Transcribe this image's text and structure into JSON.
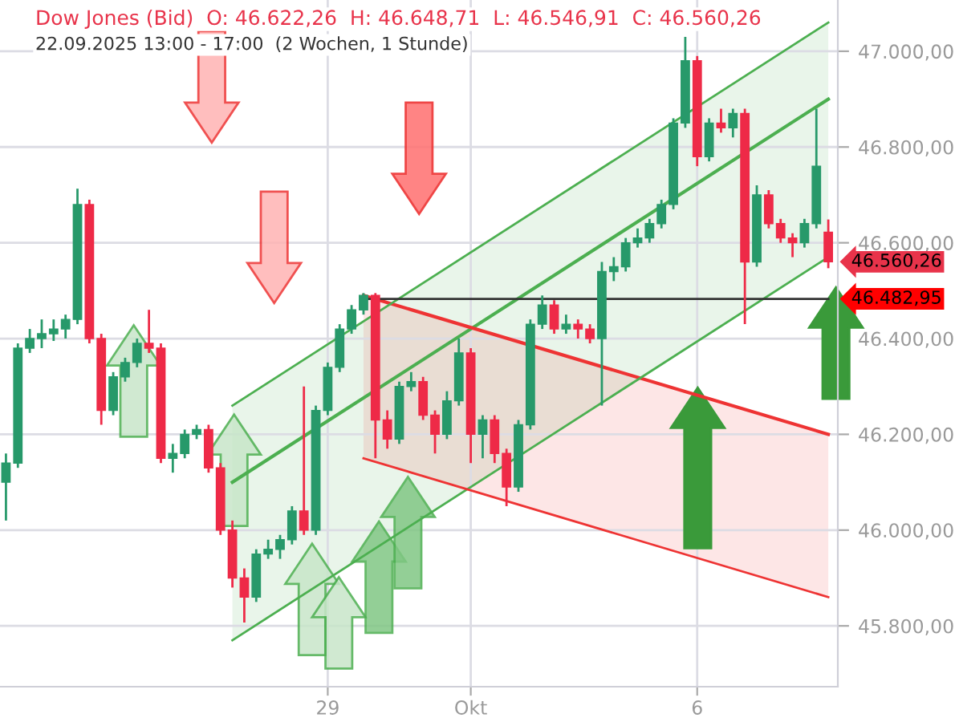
{
  "chart_data": {
    "type": "candlestick",
    "title": "Dow Jones (Bid)  O: 46.622,26  H: 46.648,71  L: 46.546,91  C: 46.560,26",
    "subtitle": "22.09.2025 13:00 - 17:00  (2 Wochen, 1 Stunde)",
    "categories": [
      null,
      null,
      null,
      null,
      null,
      null,
      null,
      null,
      null,
      null,
      null,
      null,
      null,
      null,
      null,
      null,
      null,
      null,
      null,
      null,
      null,
      null,
      null,
      null,
      null,
      null,
      null,
      "29",
      null,
      null,
      null,
      null,
      null,
      null,
      null,
      null,
      null,
      null,
      null,
      "Okt",
      null,
      null,
      null,
      null,
      null,
      null,
      null,
      null,
      null,
      null,
      null,
      null,
      null,
      null,
      null,
      null,
      null,
      null,
      "6",
      null,
      null,
      null,
      null,
      null,
      null,
      null,
      null,
      null,
      null,
      null
    ],
    "ohlc": [
      [
        46100,
        46160,
        46020,
        46140
      ],
      [
        46140,
        46390,
        46130,
        46380
      ],
      [
        46380,
        46420,
        46370,
        46400
      ],
      [
        46400,
        46440,
        46380,
        46410
      ],
      [
        46410,
        46440,
        46395,
        46420
      ],
      [
        46420,
        46450,
        46400,
        46440
      ],
      [
        46440,
        46713,
        46430,
        46680
      ],
      [
        46680,
        46690,
        46390,
        46400
      ],
      [
        46400,
        46410,
        46220,
        46250
      ],
      [
        46250,
        46330,
        46240,
        46320
      ],
      [
        46320,
        46360,
        46310,
        46350
      ],
      [
        46350,
        46400,
        46340,
        46390
      ],
      [
        46390,
        46460,
        46370,
        46380
      ],
      [
        46380,
        46390,
        46140,
        46150
      ],
      [
        46150,
        46180,
        46120,
        46160
      ],
      [
        46160,
        46210,
        46150,
        46200
      ],
      [
        46200,
        46220,
        46190,
        46210
      ],
      [
        46210,
        46220,
        46120,
        46130
      ],
      [
        46130,
        46140,
        45990,
        46000
      ],
      [
        46000,
        46020,
        45880,
        45900
      ],
      [
        45900,
        45920,
        45807,
        45860
      ],
      [
        45860,
        45960,
        45850,
        45950
      ],
      [
        45950,
        45980,
        45940,
        45960
      ],
      [
        45960,
        45990,
        45940,
        45980
      ],
      [
        45980,
        46050,
        45970,
        46040
      ],
      [
        46040,
        46300,
        45990,
        46000
      ],
      [
        46000,
        46260,
        45990,
        46250
      ],
      [
        46250,
        46350,
        46240,
        46340
      ],
      [
        46340,
        46430,
        46330,
        46420
      ],
      [
        46420,
        46470,
        46410,
        46460
      ],
      [
        46460,
        46495,
        46450,
        46490
      ],
      [
        46490,
        46495,
        46150,
        46230
      ],
      [
        46230,
        46250,
        46170,
        46190
      ],
      [
        46190,
        46310,
        46180,
        46300
      ],
      [
        46300,
        46330,
        46290,
        46310
      ],
      [
        46310,
        46320,
        46230,
        46240
      ],
      [
        46240,
        46250,
        46160,
        46200
      ],
      [
        46200,
        46290,
        46190,
        46270
      ],
      [
        46270,
        46400,
        46260,
        46370
      ],
      [
        46370,
        46380,
        46140,
        46200
      ],
      [
        46200,
        46240,
        46150,
        46230
      ],
      [
        46230,
        46240,
        46140,
        46160
      ],
      [
        46160,
        46170,
        46050,
        46090
      ],
      [
        46090,
        46230,
        46080,
        46220
      ],
      [
        46220,
        46440,
        46210,
        46430
      ],
      [
        46430,
        46490,
        46420,
        46470
      ],
      [
        46470,
        46480,
        46410,
        46420
      ],
      [
        46420,
        46450,
        46410,
        46430
      ],
      [
        46430,
        46440,
        46400,
        46420
      ],
      [
        46420,
        46430,
        46390,
        46400
      ],
      [
        46400,
        46560,
        46260,
        46540
      ],
      [
        46540,
        46570,
        46520,
        46550
      ],
      [
        46550,
        46610,
        46540,
        46600
      ],
      [
        46600,
        46630,
        46590,
        46610
      ],
      [
        46610,
        46650,
        46600,
        46640
      ],
      [
        46640,
        46690,
        46630,
        46680
      ],
      [
        46680,
        46860,
        46670,
        46850
      ],
      [
        46850,
        47030,
        46840,
        46980
      ],
      [
        46980,
        46990,
        46760,
        46780
      ],
      [
        46780,
        46860,
        46770,
        46850
      ],
      [
        46850,
        46880,
        46830,
        46840
      ],
      [
        46840,
        46880,
        46820,
        46870
      ],
      [
        46870,
        46880,
        46430,
        46560
      ],
      [
        46560,
        46720,
        46550,
        46700
      ],
      [
        46700,
        46710,
        46630,
        46640
      ],
      [
        46640,
        46650,
        46600,
        46610
      ],
      [
        46610,
        46620,
        46570,
        46600
      ],
      [
        46600,
        46650,
        46590,
        46640
      ],
      [
        46640,
        46880,
        46630,
        46760
      ],
      [
        46622.26,
        46648.71,
        46546.91,
        46560.26
      ]
    ],
    "colors": [
      "#27996a",
      "#27996a",
      "#27996a",
      "#27996a",
      "#27996a",
      "#27996a",
      "#27996a",
      "#ee2a47",
      "#ee2a47",
      "#27996a",
      "#27996a",
      "#27996a",
      "#ee2a47",
      "#ee2a47",
      "#27996a",
      "#27996a",
      "#27996a",
      "#ee2a47",
      "#ee2a47",
      "#ee2a47",
      "#ee2a47",
      "#27996a",
      "#27996a",
      "#27996a",
      "#27996a",
      "#ee2a47",
      "#27996a",
      "#27996a",
      "#27996a",
      "#27996a",
      "#27996a",
      "#ee2a47",
      "#ee2a47",
      "#27996a",
      "#27996a",
      "#ee2a47",
      "#ee2a47",
      "#27996a",
      "#27996a",
      "#ee2a47",
      "#27996a",
      "#ee2a47",
      "#ee2a47",
      "#27996a",
      "#27996a",
      "#27996a",
      "#ee2a47",
      "#27996a",
      "#ee2a47",
      "#ee2a47",
      "#27996a",
      "#27996a",
      "#27996a",
      "#27996a",
      "#27996a",
      "#27996a",
      "#27996a",
      "#27996a",
      "#ee2a47",
      "#27996a",
      "#ee2a47",
      "#27996a",
      "#ee2a47",
      "#27996a",
      "#ee2a47",
      "#ee2a47",
      "#ee2a47",
      "#27996a",
      "#27996a",
      "#ee2a47"
    ],
    "series": [
      {
        "type": "line",
        "color": "#4caf50",
        "values": [
          null,
          null,
          null,
          null,
          null,
          null,
          null,
          null,
          null,
          null,
          null,
          null,
          null,
          null,
          null,
          null,
          null,
          null,
          null,
          46100,
          null,
          null,
          null,
          null,
          null,
          null,
          null,
          null,
          null,
          null,
          null,
          null,
          null,
          null,
          null,
          null,
          null,
          null,
          null,
          null,
          null,
          null,
          null,
          null,
          null,
          null,
          null,
          null,
          null,
          null,
          null,
          null,
          null,
          null,
          null,
          null,
          null,
          null,
          null,
          null,
          null,
          null,
          null,
          null,
          null,
          null,
          null,
          null,
          null,
          46900
        ],
        "lower": [
          null,
          null,
          null,
          null,
          null,
          null,
          null,
          null,
          null,
          null,
          null,
          null,
          null,
          null,
          null,
          null,
          null,
          null,
          null,
          45770,
          null,
          null,
          null,
          null,
          null,
          null,
          null,
          null,
          null,
          null,
          null,
          null,
          null,
          null,
          null,
          null,
          null,
          null,
          null,
          null,
          null,
          null,
          null,
          null,
          null,
          null,
          null,
          null,
          null,
          null,
          null,
          null,
          null,
          null,
          null,
          null,
          null,
          null,
          null,
          null,
          null,
          null,
          null,
          null,
          null,
          null,
          null,
          null,
          null,
          46570
        ],
        "upper": [
          null,
          null,
          null,
          null,
          null,
          null,
          null,
          null,
          null,
          null,
          null,
          null,
          null,
          null,
          null,
          null,
          null,
          null,
          null,
          46260,
          null,
          null,
          null,
          null,
          null,
          null,
          null,
          null,
          null,
          null,
          null,
          null,
          null,
          null,
          null,
          null,
          null,
          null,
          null,
          null,
          null,
          null,
          null,
          null,
          null,
          null,
          null,
          null,
          null,
          null,
          null,
          null,
          null,
          null,
          null,
          null,
          null,
          null,
          null,
          null,
          null,
          null,
          null,
          null,
          null,
          null,
          null,
          null,
          null,
          47060
        ]
      },
      {
        "type": "line",
        "color": "#ee3333",
        "values": [
          null,
          null,
          null,
          null,
          null,
          null,
          null,
          null,
          null,
          null,
          null,
          null,
          null,
          null,
          null,
          null,
          null,
          null,
          null,
          null,
          null,
          null,
          null,
          null,
          null,
          null,
          null,
          null,
          null,
          null,
          46490,
          null,
          null,
          null,
          null,
          null,
          null,
          null,
          null,
          null,
          null,
          null,
          null,
          null,
          null,
          null,
          null,
          null,
          null,
          null,
          null,
          null,
          null,
          null,
          null,
          null,
          null,
          null,
          null,
          null,
          null,
          null,
          null,
          null,
          null,
          null,
          null,
          null,
          null,
          46200
        ],
        "lower": [
          null,
          null,
          null,
          null,
          null,
          null,
          null,
          null,
          null,
          null,
          null,
          null,
          null,
          null,
          null,
          null,
          null,
          null,
          null,
          null,
          null,
          null,
          null,
          null,
          null,
          null,
          null,
          null,
          null,
          null,
          46150,
          null,
          null,
          null,
          null,
          null,
          null,
          null,
          null,
          null,
          null,
          null,
          null,
          null,
          null,
          null,
          null,
          null,
          null,
          null,
          null,
          null,
          null,
          null,
          null,
          null,
          null,
          null,
          null,
          null,
          null,
          null,
          null,
          null,
          null,
          null,
          null,
          null,
          null,
          45860
        ],
        "upper": [
          null,
          null,
          null,
          null,
          null,
          null,
          null,
          null,
          null,
          null,
          null,
          null,
          null,
          null,
          null,
          null,
          null,
          null,
          null,
          null,
          null,
          null,
          null,
          null,
          null,
          null,
          null,
          null,
          null,
          null,
          46490,
          null,
          null,
          null,
          null,
          null,
          null,
          null,
          null,
          null,
          null,
          null,
          null,
          null,
          null,
          null,
          null,
          null,
          null,
          null,
          null,
          null,
          null,
          null,
          null,
          null,
          null,
          null,
          null,
          null,
          null,
          null,
          null,
          null,
          null,
          null,
          null,
          null,
          null,
          46200
        ]
      },
      {
        "type": "line",
        "color": "#4caf50",
        "values": [
          null,
          null,
          null,
          null,
          null,
          null,
          null,
          null,
          null,
          null,
          null,
          null,
          null,
          null,
          null,
          null,
          null,
          null,
          null,
          45770,
          null,
          null,
          null,
          null,
          null,
          null,
          null,
          null,
          null,
          null,
          null,
          null,
          null,
          null,
          null,
          null,
          null,
          null,
          null,
          null,
          null,
          null,
          null,
          null,
          null,
          null,
          null,
          null,
          null,
          null,
          null,
          null,
          null,
          null,
          null,
          null,
          null,
          null,
          null,
          null,
          null,
          null,
          null,
          null,
          null,
          null,
          null,
          null,
          null,
          46570
        ]
      },
      {
        "type": "line",
        "color": "#4caf50",
        "values": [
          null,
          null,
          null,
          null,
          null,
          null,
          null,
          null,
          null,
          null,
          null,
          null,
          null,
          null,
          null,
          null,
          null,
          null,
          null,
          46260,
          null,
          null,
          null,
          null,
          null,
          null,
          null,
          null,
          null,
          null,
          null,
          null,
          null,
          null,
          null,
          null,
          null,
          null,
          null,
          null,
          null,
          null,
          null,
          null,
          null,
          null,
          null,
          null,
          null,
          null,
          null,
          null,
          null,
          null,
          null,
          null,
          null,
          null,
          null,
          null,
          null,
          null,
          null,
          null,
          null,
          null,
          null,
          null,
          null,
          47060
        ]
      },
      {
        "type": "line",
        "color": "#ee3333",
        "values": [
          null,
          null,
          null,
          null,
          null,
          null,
          null,
          null,
          null,
          null,
          null,
          null,
          null,
          null,
          null,
          null,
          null,
          null,
          null,
          null,
          null,
          null,
          null,
          null,
          null,
          null,
          null,
          null,
          null,
          null,
          46150,
          null,
          null,
          null,
          null,
          null,
          null,
          null,
          null,
          null,
          null,
          null,
          null,
          null,
          null,
          null,
          null,
          null,
          null,
          null,
          null,
          null,
          null,
          null,
          null,
          null,
          null,
          null,
          null,
          null,
          null,
          null,
          null,
          null,
          null,
          null,
          null,
          null,
          null,
          45860
        ]
      },
      {
        "type": "line",
        "color": "#333333",
        "name": "46.482,95",
        "values": [
          null,
          null,
          null,
          null,
          null,
          null,
          null,
          null,
          null,
          null,
          null,
          null,
          null,
          null,
          null,
          null,
          null,
          null,
          null,
          null,
          null,
          null,
          null,
          null,
          null,
          null,
          null,
          null,
          null,
          null,
          46482.95,
          null,
          null,
          null,
          null,
          null,
          null,
          null,
          null,
          null,
          null,
          null,
          null,
          null,
          null,
          null,
          null,
          null,
          null,
          null,
          null,
          null,
          null,
          null,
          null,
          null,
          null,
          null,
          null,
          null,
          null,
          null,
          null,
          null,
          null,
          null,
          null,
          null,
          null,
          46482.95
        ]
      }
    ],
    "annotations": [
      "46.560,26"
    ],
    "ylim": [
      45673,
      47107
    ],
    "yticks": [
      {
        "value": 45800,
        "label": "45.800,00"
      },
      {
        "value": 46000,
        "label": "46.000,00"
      },
      {
        "value": 46200,
        "label": "46.200,00"
      },
      {
        "value": 46400,
        "label": "46.400,00"
      },
      {
        "value": 46600,
        "label": "46.600,00"
      },
      {
        "value": 46800,
        "label": "46.800,00"
      },
      {
        "value": 47000,
        "label": "47.000,00"
      }
    ],
    "grid": true
  }
}
